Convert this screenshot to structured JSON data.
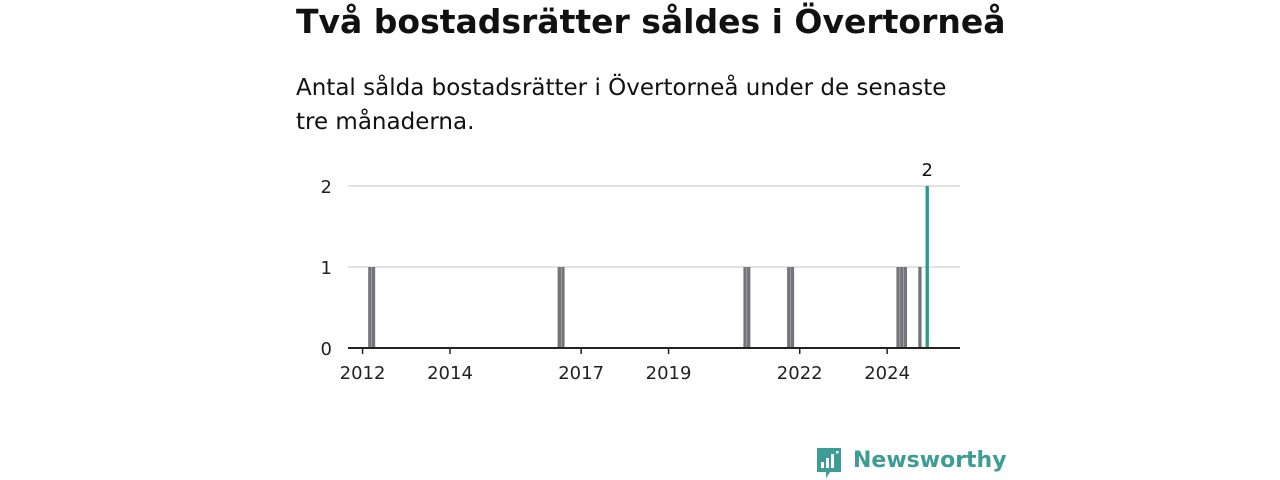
{
  "header": {
    "title": "Två bostadsrätter såldes i Övertorneå",
    "subtitle": "Antal sålda bostadsrätter i Övertorneå under de senaste tre månaderna."
  },
  "brand": {
    "name": "Newsworthy",
    "icon": "newsworthy-logo-icon",
    "color": "#3d9c96"
  },
  "colors": {
    "bars": "#75747a",
    "highlight": "#2a9a8e",
    "grid": "#d9d9d9",
    "axis": "#222222"
  },
  "chart_data": {
    "type": "bar",
    "title": "Två bostadsrätter såldes i Övertorneå",
    "subtitle": "Antal sålda bostadsrätter i Övertorneå under de senaste tre månaderna.",
    "xlabel": "",
    "ylabel": "",
    "ylim": [
      0,
      2
    ],
    "yticks": [
      0,
      1,
      2
    ],
    "xticks": [
      "2012",
      "2014",
      "2017",
      "2019",
      "2022",
      "2024"
    ],
    "xrange": [
      "2011-09",
      "2025-09"
    ],
    "grid": true,
    "legend": "none",
    "data_label": "2",
    "points": [
      {
        "period": "2012-03",
        "value": 1
      },
      {
        "period": "2012-04",
        "value": 1
      },
      {
        "period": "2016-07",
        "value": 1
      },
      {
        "period": "2016-08",
        "value": 1
      },
      {
        "period": "2020-10",
        "value": 1
      },
      {
        "period": "2020-11",
        "value": 1
      },
      {
        "period": "2021-10",
        "value": 1
      },
      {
        "period": "2021-11",
        "value": 1
      },
      {
        "period": "2024-04",
        "value": 1
      },
      {
        "period": "2024-05",
        "value": 1
      },
      {
        "period": "2024-06",
        "value": 1
      },
      {
        "period": "2024-10",
        "value": 1
      },
      {
        "period": "2024-12",
        "value": 2,
        "highlight": true
      }
    ]
  }
}
